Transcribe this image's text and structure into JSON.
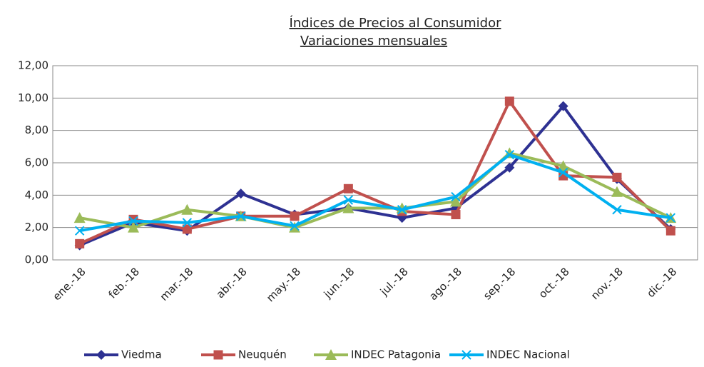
{
  "chart_data": {
    "type": "line",
    "title": "Índices de Precios al Consumidor",
    "subtitle": "Variaciones mensuales",
    "categories": [
      "ene.-18",
      "feb.-18",
      "mar.-18",
      "abr.-18",
      "may.-18",
      "jun.-18",
      "jul.-18",
      "ago.-18",
      "sep.-18",
      "oct.-18",
      "nov.-18",
      "dic.-18"
    ],
    "series": [
      {
        "name": "Viedma",
        "color": "#2e3192",
        "marker": "diamond",
        "values": [
          0.9,
          2.3,
          1.8,
          4.1,
          2.8,
          3.2,
          2.6,
          3.2,
          5.7,
          9.5,
          5.0,
          1.9
        ]
      },
      {
        "name": "Neuquén",
        "color": "#c0504d",
        "marker": "square",
        "values": [
          1.0,
          2.5,
          1.9,
          2.7,
          2.7,
          4.4,
          3.0,
          2.8,
          9.8,
          5.2,
          5.1,
          1.8
        ]
      },
      {
        "name": "INDEC Patagonia",
        "color": "#9bbb59",
        "marker": "triangle",
        "values": [
          2.6,
          2.0,
          3.1,
          2.7,
          2.0,
          3.2,
          3.2,
          3.6,
          6.6,
          5.8,
          4.2,
          2.6
        ]
      },
      {
        "name": "INDEC Nacional",
        "color": "#00b0f0",
        "marker": "x",
        "values": [
          1.8,
          2.4,
          2.3,
          2.7,
          2.1,
          3.7,
          3.1,
          3.9,
          6.5,
          5.4,
          3.1,
          2.6
        ]
      }
    ],
    "ylim": [
      0,
      12
    ],
    "yticks": [
      {
        "value": 0,
        "label": "0,00"
      },
      {
        "value": 2,
        "label": "2,00"
      },
      {
        "value": 4,
        "label": "4,00"
      },
      {
        "value": 6,
        "label": "6,00"
      },
      {
        "value": 8,
        "label": "8,00"
      },
      {
        "value": 10,
        "label": "10,00"
      },
      {
        "value": 12,
        "label": "12,00"
      }
    ],
    "grid": true,
    "legend": "bottom"
  }
}
